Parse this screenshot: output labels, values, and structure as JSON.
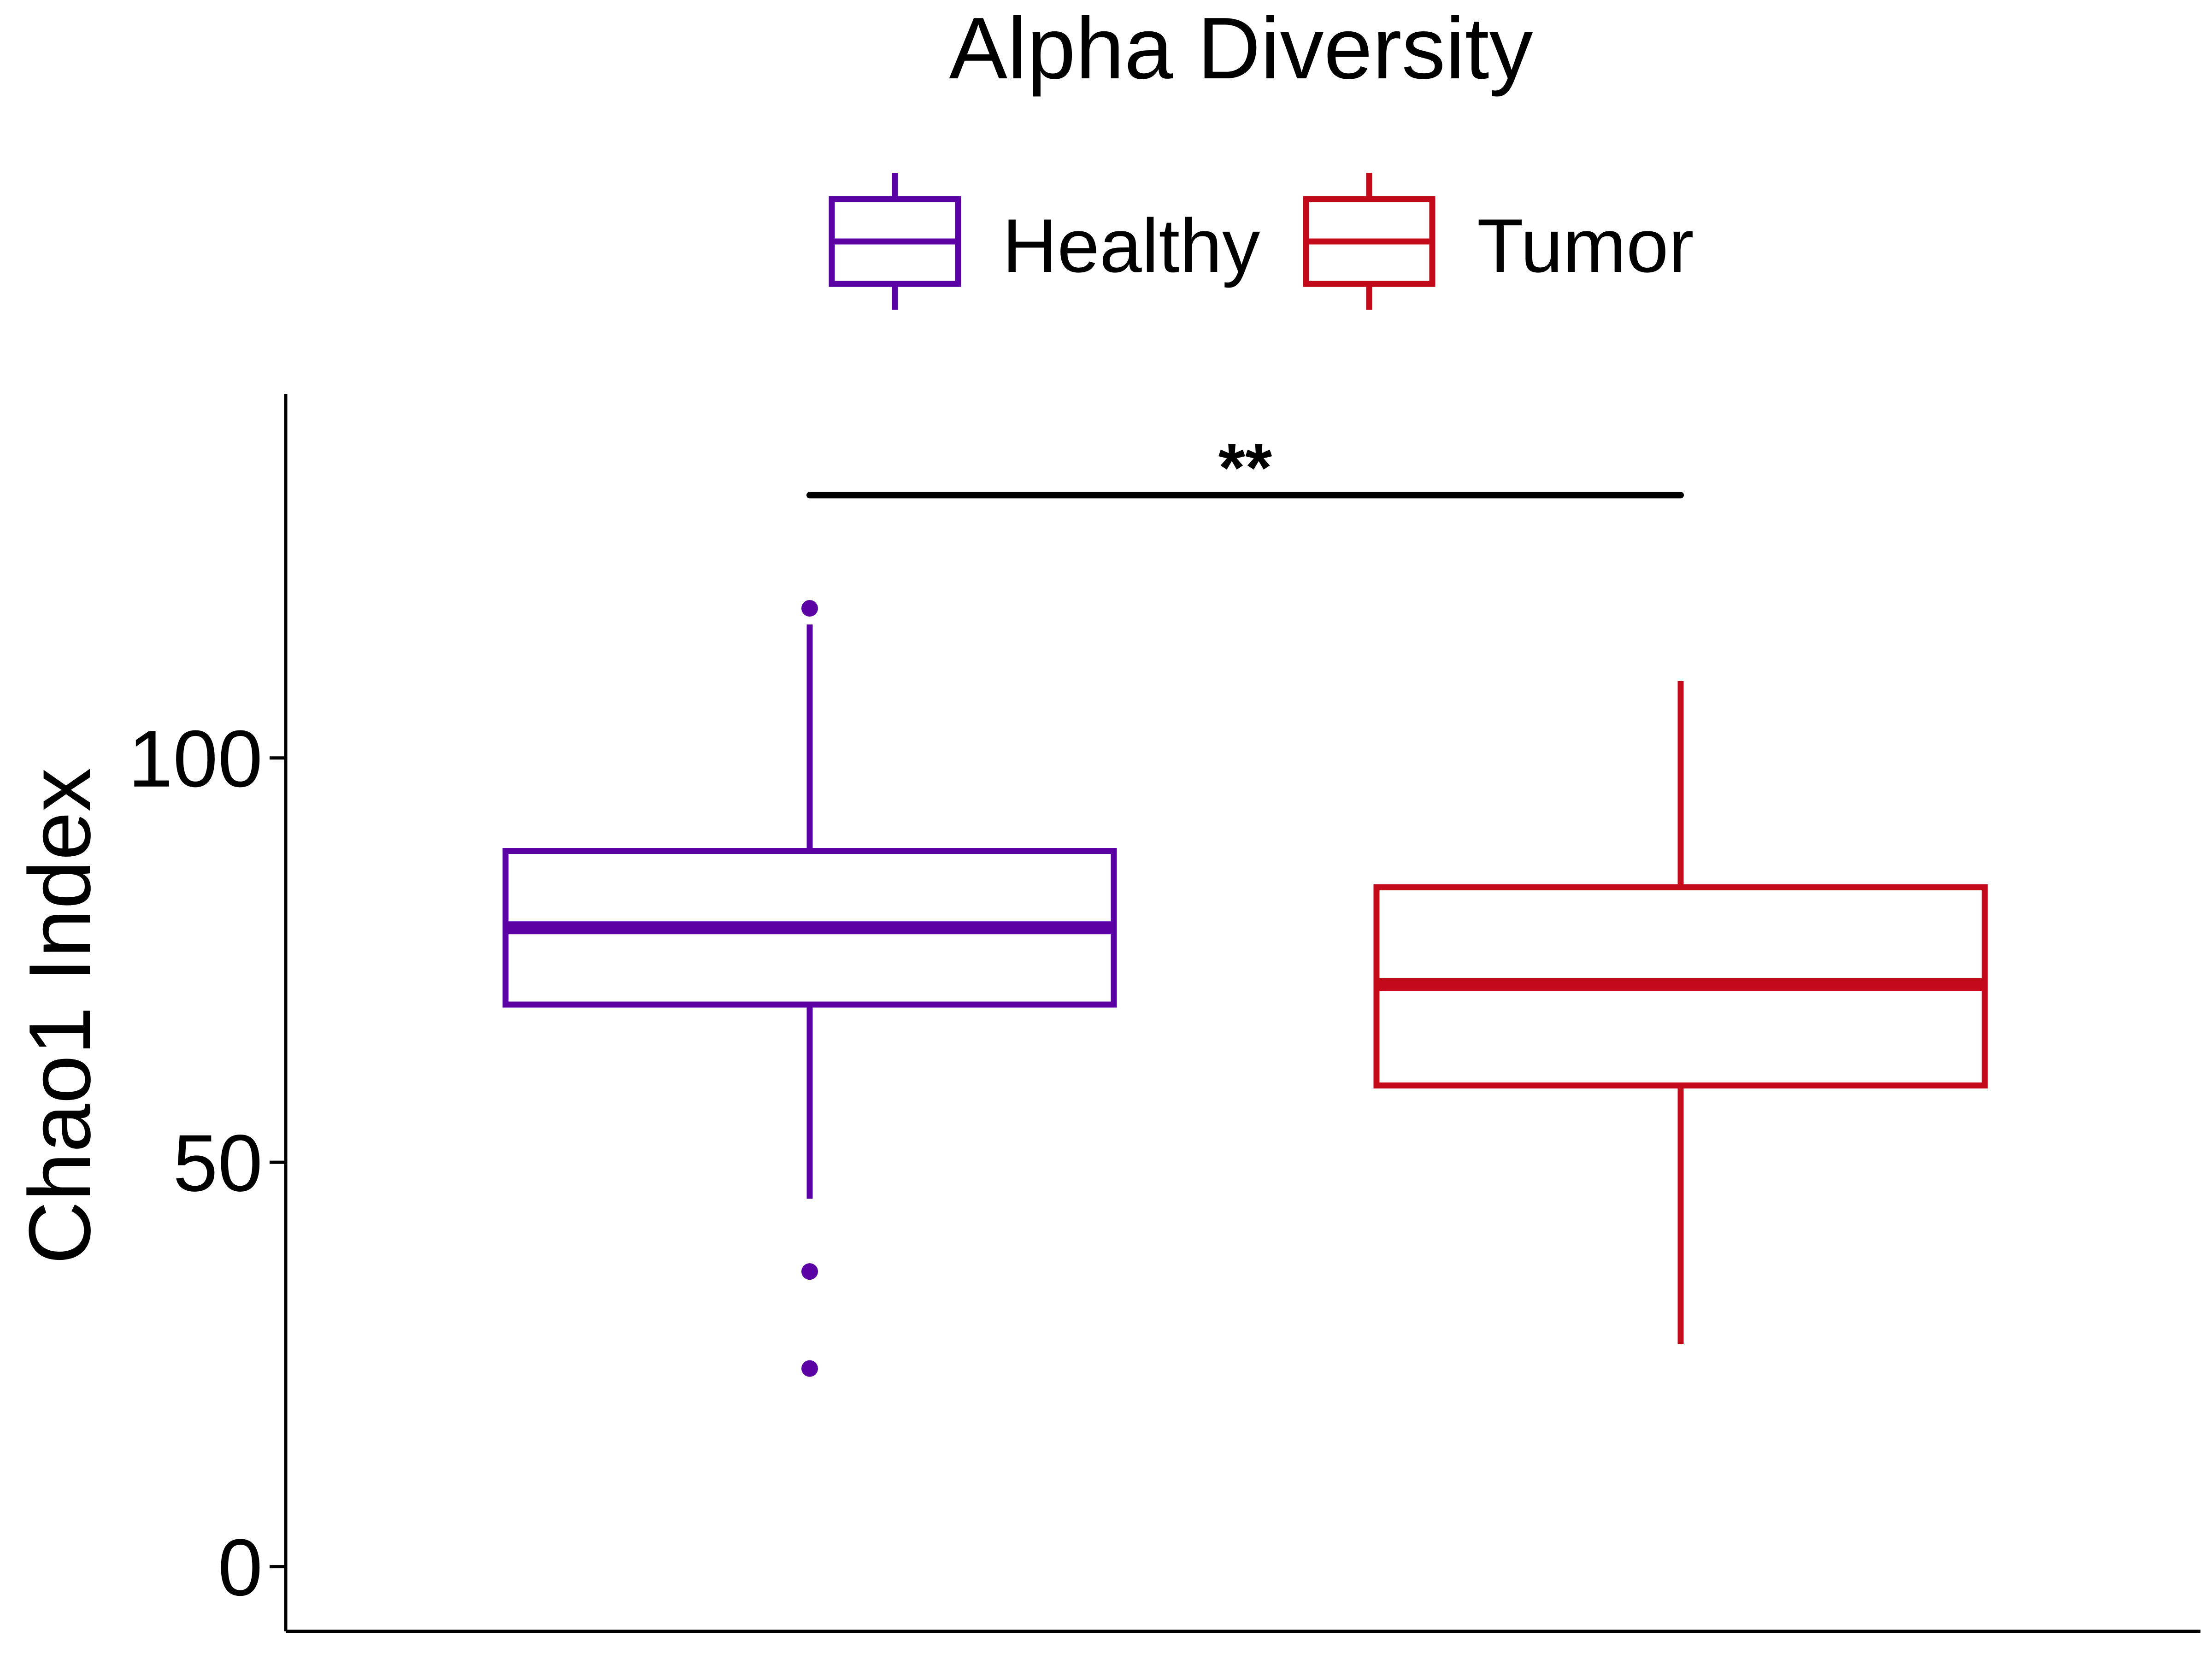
{
  "chart_data": {
    "type": "box",
    "title": "Alpha Diversity",
    "xlabel": "",
    "ylabel": "Chao1 Index",
    "ylim": [
      -8,
      145
    ],
    "yticks": [
      0,
      50,
      100
    ],
    "ytick_labels": [
      "0",
      "50",
      "100"
    ],
    "legend": {
      "position": "top",
      "entries": [
        "Healthy",
        "Tumor"
      ]
    },
    "series": [
      {
        "name": "Healthy",
        "color": "#5b02a4",
        "whisker_low": 45.5,
        "q1": 69.5,
        "median": 79,
        "q3": 88.5,
        "whisker_high": 116.5,
        "outliers": [
          118.5,
          36.5,
          24.5
        ]
      },
      {
        "name": "Tumor",
        "color": "#c30a1a",
        "whisker_low": 27.5,
        "q1": 59.5,
        "median": 72,
        "q3": 84,
        "whisker_high": 109.5,
        "outliers": []
      }
    ],
    "significance": {
      "label": "**",
      "groups": [
        "Healthy",
        "Tumor"
      ],
      "y": 132.5
    }
  }
}
